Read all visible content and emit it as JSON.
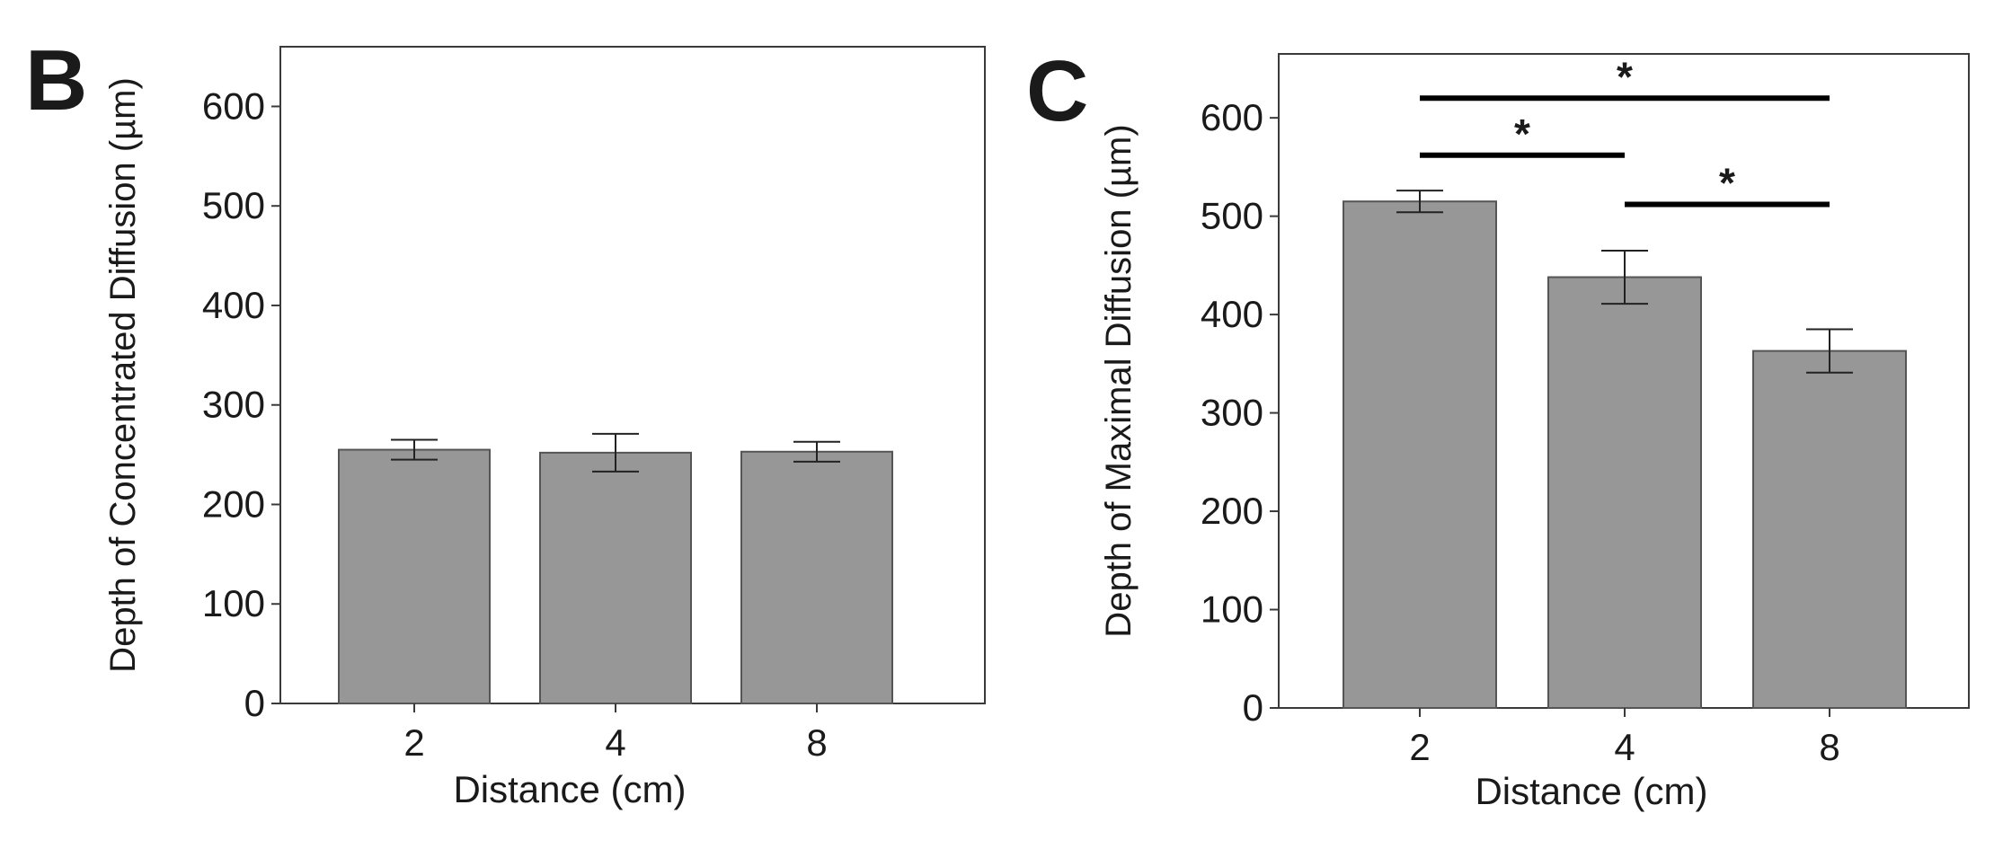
{
  "chart_data": [
    {
      "panel_label": "B",
      "type": "bar",
      "categories": [
        "2",
        "4",
        "8"
      ],
      "values": [
        255,
        252,
        253
      ],
      "error": [
        10,
        19,
        10
      ],
      "xlabel": "Distance (cm)",
      "ylabel": "Depth of Concentrated Diffusion (µm)",
      "ylim": [
        0,
        660
      ],
      "yticks": [
        0,
        100,
        200,
        300,
        400,
        500,
        600
      ],
      "significance": []
    },
    {
      "panel_label": "C",
      "type": "bar",
      "categories": [
        "2",
        "4",
        "8"
      ],
      "values": [
        515,
        438,
        363
      ],
      "error": [
        11,
        27,
        22
      ],
      "xlabel": "Distance (cm)",
      "ylabel": "Depth of Maximal Diffusion (µm)",
      "ylim": [
        0,
        665
      ],
      "yticks": [
        0,
        100,
        200,
        300,
        400,
        500,
        600
      ],
      "significance": [
        {
          "from": 0,
          "to": 2,
          "y": 620,
          "label": "*"
        },
        {
          "from": 0,
          "to": 1,
          "y": 562,
          "label": "*"
        },
        {
          "from": 1,
          "to": 2,
          "y": 512,
          "label": "*"
        }
      ]
    }
  ],
  "colors": {
    "bar": "#979797",
    "bar_edge": "#555555",
    "axis": "#3a3a3a",
    "sig": "#000000"
  }
}
